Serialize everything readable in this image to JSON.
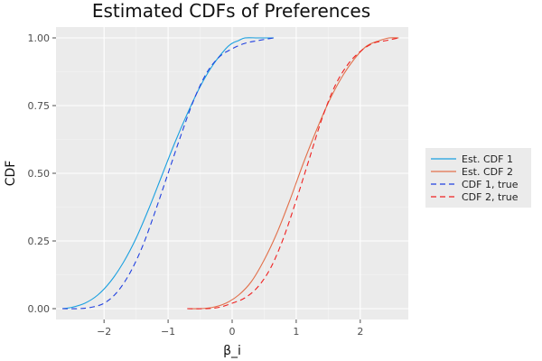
{
  "chart_data": {
    "type": "line",
    "title": "Estimated CDFs of Preferences",
    "xlabel": "β_i",
    "ylabel": "CDF",
    "xlim": [
      -2.75,
      2.75
    ],
    "ylim": [
      -0.04,
      1.04
    ],
    "x_ticks": [
      -2,
      -1,
      0,
      1,
      2
    ],
    "x_tick_labels": [
      "−2",
      "−1",
      "0",
      "1",
      "2"
    ],
    "y_ticks": [
      0,
      0.25,
      0.5,
      0.75,
      1
    ],
    "y_tick_labels": [
      "0.00",
      "0.25",
      "0.50",
      "0.75",
      "1.00"
    ],
    "grid": true,
    "legend_position": "right",
    "series": [
      {
        "name": "Est. CDF 1",
        "color": "#1aa0e0",
        "dash": "solid",
        "x": [
          -2.65,
          -2.5,
          -2.3,
          -2.1,
          -1.9,
          -1.7,
          -1.5,
          -1.3,
          -1.1,
          -0.9,
          -0.7,
          -0.5,
          -0.3,
          -0.1,
          0.0,
          0.1,
          0.2,
          0.4,
          0.65
        ],
        "y": [
          0.0,
          0.005,
          0.02,
          0.05,
          0.1,
          0.17,
          0.26,
          0.37,
          0.49,
          0.61,
          0.72,
          0.82,
          0.9,
          0.96,
          0.98,
          0.99,
          1.0,
          1.0,
          1.0
        ]
      },
      {
        "name": "Est. CDF 2",
        "color": "#e2704b",
        "dash": "solid",
        "x": [
          -0.7,
          -0.5,
          -0.3,
          -0.1,
          0.1,
          0.3,
          0.5,
          0.7,
          0.9,
          1.1,
          1.3,
          1.5,
          1.7,
          1.9,
          2.1,
          2.3,
          2.45,
          2.6
        ],
        "y": [
          0.0,
          0.0,
          0.005,
          0.02,
          0.05,
          0.1,
          0.18,
          0.28,
          0.4,
          0.53,
          0.65,
          0.76,
          0.85,
          0.92,
          0.97,
          0.99,
          1.0,
          1.0
        ]
      },
      {
        "name": "CDF 1, true",
        "color": "#2040e0",
        "dash": "dashed",
        "x": [
          -2.65,
          -2.4,
          -2.2,
          -2.0,
          -1.8,
          -1.6,
          -1.4,
          -1.2,
          -1.0,
          -0.8,
          -0.6,
          -0.4,
          -0.2,
          0.0,
          0.2,
          0.4,
          0.65
        ],
        "y": [
          0.0,
          0.0,
          0.005,
          0.02,
          0.06,
          0.13,
          0.23,
          0.36,
          0.5,
          0.64,
          0.77,
          0.87,
          0.93,
          0.96,
          0.98,
          0.99,
          1.0
        ]
      },
      {
        "name": "CDF 2, true",
        "color": "#f02020",
        "dash": "dashed",
        "x": [
          -0.7,
          -0.4,
          -0.2,
          0.0,
          0.2,
          0.4,
          0.6,
          0.8,
          1.0,
          1.2,
          1.4,
          1.6,
          1.8,
          2.0,
          2.2,
          2.4,
          2.6
        ],
        "y": [
          0.0,
          0.0,
          0.005,
          0.02,
          0.04,
          0.08,
          0.15,
          0.26,
          0.4,
          0.55,
          0.7,
          0.82,
          0.9,
          0.95,
          0.98,
          0.99,
          1.0
        ]
      }
    ]
  }
}
